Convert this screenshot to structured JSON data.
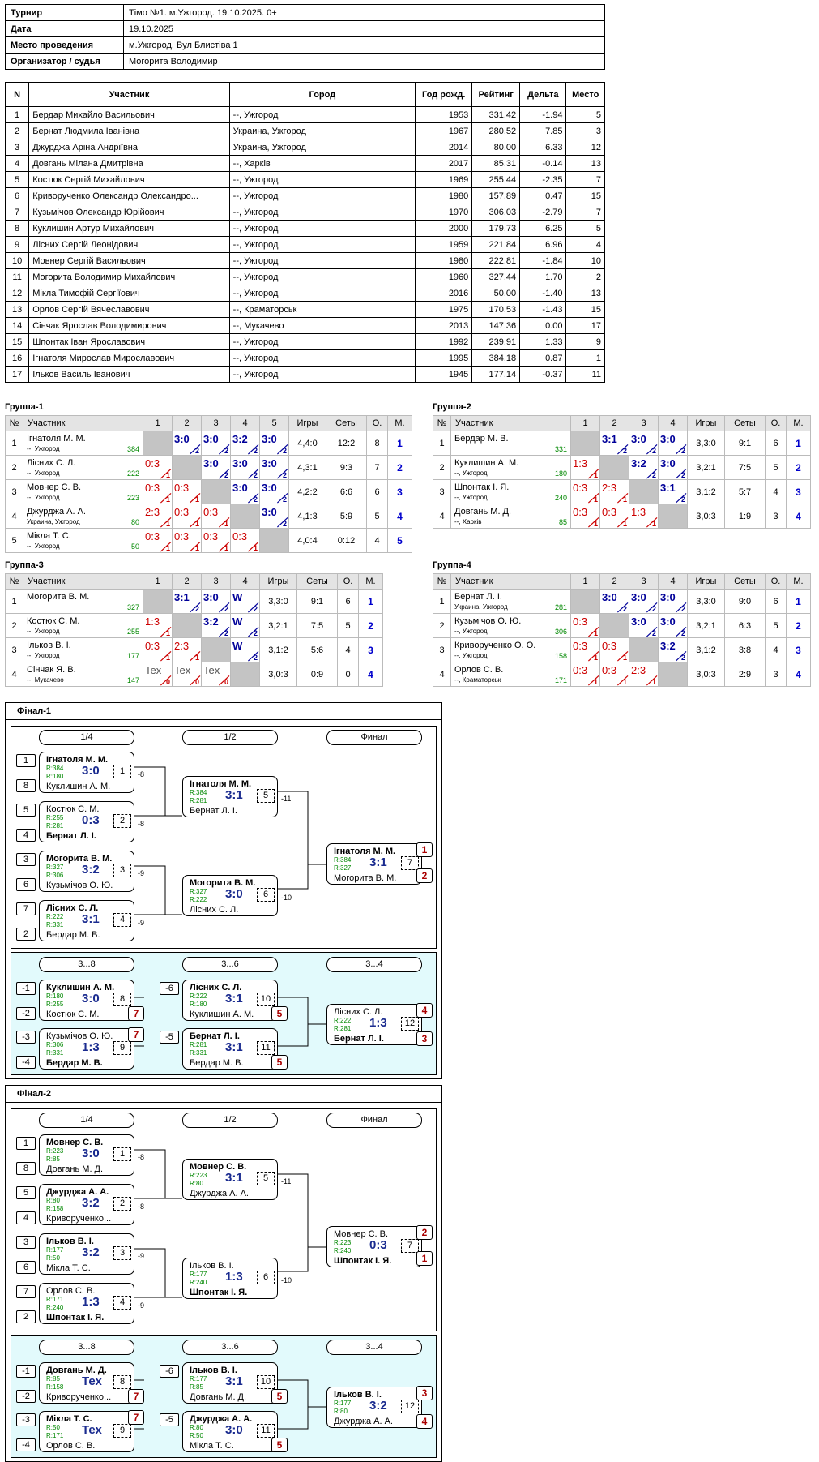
{
  "info": [
    {
      "k": "Турнир",
      "v": "Тімо №1. м.Ужгород. 19.10.2025. 0+"
    },
    {
      "k": "Дата",
      "v": "19.10.2025"
    },
    {
      "k": "Место проведения",
      "v": "м.Ужгород, Вул Блистіва 1"
    },
    {
      "k": "Организатор / судья",
      "v": "Могорита Володимир"
    }
  ],
  "players_header": [
    "N",
    "Участник",
    "Город",
    "Год рожд.",
    "Рейтинг",
    "Дельта",
    "Место"
  ],
  "players": [
    [
      "1",
      "Бердар Михайло Васильович",
      "--, Ужгород",
      "1953",
      "331.42",
      "-1.94",
      "5"
    ],
    [
      "2",
      "Бернат Людмила Іванівна",
      "Украина, Ужгород",
      "1967",
      "280.52",
      "7.85",
      "3"
    ],
    [
      "3",
      "Джурджа Аріна Андріївна",
      "Украина, Ужгород",
      "2014",
      "80.00",
      "6.33",
      "12"
    ],
    [
      "4",
      "Довгань Мілана Дмитрівна",
      "--, Харків",
      "2017",
      "85.31",
      "-0.14",
      "13"
    ],
    [
      "5",
      "Костюк Сергій Михайлович",
      "--, Ужгород",
      "1969",
      "255.44",
      "-2.35",
      "7"
    ],
    [
      "6",
      "Криворученко Олександр Олександро...",
      "--, Ужгород",
      "1980",
      "157.89",
      "0.47",
      "15"
    ],
    [
      "7",
      "Кузьмічов Олександр Юрійович",
      "--, Ужгород",
      "1970",
      "306.03",
      "-2.79",
      "7"
    ],
    [
      "8",
      "Куклишин Артур Михайлович",
      "--, Ужгород",
      "2000",
      "179.73",
      "6.25",
      "5"
    ],
    [
      "9",
      "Лісних Сергій Леонідович",
      "--, Ужгород",
      "1959",
      "221.84",
      "6.96",
      "4"
    ],
    [
      "10",
      "Мовнер Сергій Васильович",
      "--, Ужгород",
      "1980",
      "222.81",
      "-1.84",
      "10"
    ],
    [
      "11",
      "Могорита Володимир Михайлович",
      "--, Ужгород",
      "1960",
      "327.44",
      "1.70",
      "2"
    ],
    [
      "12",
      "Мікла Тимофій Сергіїович",
      "--, Ужгород",
      "2016",
      "50.00",
      "-1.40",
      "13"
    ],
    [
      "13",
      "Орлов Сергій Вячеславович",
      "--, Краматорськ",
      "1975",
      "170.53",
      "-1.43",
      "15"
    ],
    [
      "14",
      "Сінчак Ярослав Володимирович",
      "--, Мукачево",
      "2013",
      "147.36",
      "0.00",
      "17"
    ],
    [
      "15",
      "Шпонтак Іван Ярославович",
      "--, Ужгород",
      "1992",
      "239.91",
      "1.33",
      "9"
    ],
    [
      "16",
      "Ігнатоля Мирослав Мирославович",
      "--, Ужгород",
      "1995",
      "384.18",
      "0.87",
      "1"
    ],
    [
      "17",
      "Ільков Василь Іванович",
      "--, Ужгород",
      "1945",
      "177.14",
      "-0.37",
      "11"
    ]
  ],
  "group_header": {
    "n": "№",
    "name": "Участник",
    "games": "Игры",
    "sets": "Сеты",
    "pts": "О.",
    "place": "М."
  },
  "groups": [
    {
      "title": "Группа-1",
      "rows": [
        {
          "n": "1",
          "name": "Ігнатоля М. М.",
          "city": "--, Ужгород",
          "r": "384",
          "res": [
            "X",
            "W3:0|2",
            "W3:0|2",
            "W3:2|2",
            "W3:0|2"
          ],
          "g": "4,4:0",
          "s": "12:2",
          "o": "8",
          "m": "1"
        },
        {
          "n": "2",
          "name": "Лісних С. Л.",
          "city": "--, Ужгород",
          "r": "222",
          "res": [
            "L0:3|1",
            "X",
            "W3:0|2",
            "W3:0|2",
            "W3:0|2"
          ],
          "g": "4,3:1",
          "s": "9:3",
          "o": "7",
          "m": "2"
        },
        {
          "n": "3",
          "name": "Мовнер С. В.",
          "city": "--, Ужгород",
          "r": "223",
          "res": [
            "L0:3|1",
            "L0:3|1",
            "X",
            "W3:0|2",
            "W3:0|2"
          ],
          "g": "4,2:2",
          "s": "6:6",
          "o": "6",
          "m": "3"
        },
        {
          "n": "4",
          "name": "Джурджа А. А.",
          "city": "Украина, Ужгород",
          "r": "80",
          "res": [
            "L2:3|1",
            "L0:3|1",
            "L0:3|1",
            "X",
            "W3:0|2"
          ],
          "g": "4,1:3",
          "s": "5:9",
          "o": "5",
          "m": "4"
        },
        {
          "n": "5",
          "name": "Мікла Т. С.",
          "city": "--, Ужгород",
          "r": "50",
          "res": [
            "L0:3|1",
            "L0:3|1",
            "L0:3|1",
            "L0:3|1",
            "X"
          ],
          "g": "4,0:4",
          "s": "0:12",
          "o": "4",
          "m": "5"
        }
      ]
    },
    {
      "title": "Группа-2",
      "rows": [
        {
          "n": "1",
          "name": "Бердар М. В.",
          "city": "",
          "r": "331",
          "res": [
            "X",
            "W3:1|2",
            "W3:0|2",
            "W3:0|2"
          ],
          "g": "3,3:0",
          "s": "9:1",
          "o": "6",
          "m": "1"
        },
        {
          "n": "2",
          "name": "Куклишин А. М.",
          "city": "--, Ужгород",
          "r": "180",
          "res": [
            "L1:3|1",
            "X",
            "W3:2|2",
            "W3:0|2"
          ],
          "g": "3,2:1",
          "s": "7:5",
          "o": "5",
          "m": "2"
        },
        {
          "n": "3",
          "name": "Шпонтак І. Я.",
          "city": "--, Ужгород",
          "r": "240",
          "res": [
            "L0:3|1",
            "L2:3|1",
            "X",
            "W3:1|2"
          ],
          "g": "3,1:2",
          "s": "5:7",
          "o": "4",
          "m": "3"
        },
        {
          "n": "4",
          "name": "Довгань М. Д.",
          "city": "--, Харків",
          "r": "85",
          "res": [
            "L0:3|1",
            "L0:3|1",
            "L1:3|1",
            "X"
          ],
          "g": "3,0:3",
          "s": "1:9",
          "o": "3",
          "m": "4"
        }
      ]
    },
    {
      "title": "Группа-3",
      "rows": [
        {
          "n": "1",
          "name": "Могорита В. М.",
          "city": "",
          "r": "327",
          "res": [
            "X",
            "W3:1|2",
            "W3:0|2",
            "WW|2"
          ],
          "g": "3,3:0",
          "s": "9:1",
          "o": "6",
          "m": "1"
        },
        {
          "n": "2",
          "name": "Костюк С. М.",
          "city": "--, Ужгород",
          "r": "255",
          "res": [
            "L1:3|1",
            "X",
            "W3:2|2",
            "WW|2"
          ],
          "g": "3,2:1",
          "s": "7:5",
          "o": "5",
          "m": "2"
        },
        {
          "n": "3",
          "name": "Ільков В. І.",
          "city": "--, Ужгород",
          "r": "177",
          "res": [
            "L0:3|1",
            "L2:3|1",
            "X",
            "WW|2"
          ],
          "g": "3,1:2",
          "s": "5:6",
          "o": "4",
          "m": "3"
        },
        {
          "n": "4",
          "name": "Сінчак Я. В.",
          "city": "--, Мукачево",
          "r": "147",
          "res": [
            "TTex|0",
            "TTex|0",
            "TTex|0",
            "X"
          ],
          "g": "3,0:3",
          "s": "0:9",
          "o": "0",
          "m": "4"
        }
      ]
    },
    {
      "title": "Группа-4",
      "rows": [
        {
          "n": "1",
          "name": "Бернат Л. І.",
          "city": "Украина, Ужгород",
          "r": "281",
          "res": [
            "X",
            "W3:0|2",
            "W3:0|2",
            "W3:0|2"
          ],
          "g": "3,3:0",
          "s": "9:0",
          "o": "6",
          "m": "1"
        },
        {
          "n": "2",
          "name": "Кузьмічов О. Ю.",
          "city": "--, Ужгород",
          "r": "306",
          "res": [
            "L0:3|1",
            "X",
            "W3:0|2",
            "W3:0|2"
          ],
          "g": "3,2:1",
          "s": "6:3",
          "o": "5",
          "m": "2"
        },
        {
          "n": "3",
          "name": "Криворученко О. О.",
          "city": "--, Ужгород",
          "r": "158",
          "res": [
            "L0:3|1",
            "L0:3|1",
            "X",
            "W3:2|2"
          ],
          "g": "3,1:2",
          "s": "3:8",
          "o": "4",
          "m": "3"
        },
        {
          "n": "4",
          "name": "Орлов С. В.",
          "city": "--, Краматорськ",
          "r": "171",
          "res": [
            "L0:3|1",
            "L0:3|1",
            "L2:3|1",
            "X"
          ],
          "g": "3,0:3",
          "s": "2:9",
          "o": "3",
          "m": "4"
        }
      ]
    }
  ],
  "finals": [
    {
      "title": "Фінал-1",
      "rounds1": [
        "1/4",
        "1/2",
        "Финал"
      ],
      "rounds2": [
        "3...8",
        "3...6",
        "3...4"
      ],
      "seeds1": [
        "1",
        "8",
        "5",
        "4",
        "3",
        "6",
        "7",
        "2"
      ],
      "seeds2": [
        "-1",
        "-2",
        "-3",
        "-4",
        "-6",
        "-5"
      ],
      "m1": [
        {
          "a": "Ігнатоля М. М.",
          "ab": 1,
          "ra": "R:384",
          "b": "Куклишин А. М.",
          "bb": 0,
          "rb": "R:180",
          "s": "3:0",
          "n": "1",
          "lab": "-8"
        },
        {
          "a": "Костюк С. М.",
          "ab": 0,
          "ra": "R:255",
          "b": "Бернат Л. І.",
          "bb": 1,
          "rb": "R:281",
          "s": "0:3",
          "n": "2",
          "lab": "-8"
        },
        {
          "a": "Могорита В. М.",
          "ab": 1,
          "ra": "R:327",
          "b": "Кузьмічов О. Ю.",
          "bb": 0,
          "rb": "R:306",
          "s": "3:2",
          "n": "3",
          "lab": "-9"
        },
        {
          "a": "Лісних С. Л.",
          "ab": 1,
          "ra": "R:222",
          "b": "Бердар М. В.",
          "bb": 0,
          "rb": "R:331",
          "s": "3:1",
          "n": "4",
          "lab": "-9"
        },
        {
          "a": "Ігнатоля М. М.",
          "ab": 1,
          "ra": "R:384",
          "b": "Бернат Л. І.",
          "bb": 0,
          "rb": "R:281",
          "s": "3:1",
          "n": "5",
          "lab": "-11"
        },
        {
          "a": "Могорита В. М.",
          "ab": 1,
          "ra": "R:327",
          "b": "Лісних С. Л.",
          "bb": 0,
          "rb": "R:222",
          "s": "3:0",
          "n": "6",
          "lab": "-10"
        },
        {
          "a": "Ігнатоля М. М.",
          "ab": 1,
          "ra": "R:384",
          "b": "Могорита В. М.",
          "bb": 0,
          "rb": "R:327",
          "s": "3:1",
          "n": "7",
          "lab": ""
        }
      ],
      "m2": [
        {
          "a": "Куклишин А. М.",
          "ab": 1,
          "ra": "R:180",
          "b": "Костюк С. М.",
          "bb": 0,
          "rb": "R:255",
          "s": "3:0",
          "n": "8",
          "lab": ""
        },
        {
          "a": "Кузьмічов О. Ю.",
          "ab": 0,
          "ra": "R:306",
          "b": "Бердар М. В.",
          "bb": 1,
          "rb": "R:331",
          "s": "1:3",
          "n": "9",
          "lab": ""
        },
        {
          "a": "Лісних С. Л.",
          "ab": 1,
          "ra": "R:222",
          "b": "Куклишин А. М.",
          "bb": 0,
          "rb": "R:180",
          "s": "3:1",
          "n": "10",
          "lab": ""
        },
        {
          "a": "Бернат Л. І.",
          "ab": 1,
          "ra": "R:281",
          "b": "Бердар М. В.",
          "bb": 0,
          "rb": "R:331",
          "s": "3:1",
          "n": "11",
          "lab": ""
        },
        {
          "a": "Лісних С. Л.",
          "ab": 0,
          "ra": "R:222",
          "b": "Бернат Л. І.",
          "bb": 1,
          "rb": "R:281",
          "s": "1:3",
          "n": "12",
          "lab": ""
        }
      ],
      "places1": [
        "1",
        "2"
      ],
      "places2": [
        "7",
        "7",
        "5",
        "5",
        "4",
        "3"
      ]
    },
    {
      "title": "Фінал-2",
      "rounds1": [
        "1/4",
        "1/2",
        "Финал"
      ],
      "rounds2": [
        "3...8",
        "3...6",
        "3...4"
      ],
      "seeds1": [
        "1",
        "8",
        "5",
        "4",
        "3",
        "6",
        "7",
        "2"
      ],
      "seeds2": [
        "-1",
        "-2",
        "-3",
        "-4",
        "-6",
        "-5"
      ],
      "m1": [
        {
          "a": "Мовнер С. В.",
          "ab": 1,
          "ra": "R:223",
          "b": "Довгань М. Д.",
          "bb": 0,
          "rb": "R:85",
          "s": "3:0",
          "n": "1",
          "lab": "-8"
        },
        {
          "a": "Джурджа А. А.",
          "ab": 1,
          "ra": "R:80",
          "b": "Криворученко...",
          "bb": 0,
          "rb": "R:158",
          "s": "3:2",
          "n": "2",
          "lab": "-8"
        },
        {
          "a": "Ільков В. І.",
          "ab": 1,
          "ra": "R:177",
          "b": "Мікла Т. С.",
          "bb": 0,
          "rb": "R:50",
          "s": "3:2",
          "n": "3",
          "lab": "-9"
        },
        {
          "a": "Орлов С. В.",
          "ab": 0,
          "ra": "R:171",
          "b": "Шпонтак І. Я.",
          "bb": 1,
          "rb": "R:240",
          "s": "1:3",
          "n": "4",
          "lab": "-9"
        },
        {
          "a": "Мовнер С. В.",
          "ab": 1,
          "ra": "R:223",
          "b": "Джурджа А. А.",
          "bb": 0,
          "rb": "R:80",
          "s": "3:1",
          "n": "5",
          "lab": "-11"
        },
        {
          "a": "Ільков В. І.",
          "ab": 0,
          "ra": "R:177",
          "b": "Шпонтак І. Я.",
          "bb": 1,
          "rb": "R:240",
          "s": "1:3",
          "n": "6",
          "lab": "-10"
        },
        {
          "a": "Мовнер С. В.",
          "ab": 0,
          "ra": "R:223",
          "b": "Шпонтак І. Я.",
          "bb": 1,
          "rb": "R:240",
          "s": "0:3",
          "n": "7",
          "lab": ""
        }
      ],
      "m2": [
        {
          "a": "Довгань М. Д.",
          "ab": 1,
          "ra": "R:85",
          "b": "Криворученко...",
          "bb": 0,
          "rb": "R:158",
          "s": "Тех",
          "n": "8",
          "lab": ""
        },
        {
          "a": "Мікла Т. С.",
          "ab": 1,
          "ra": "R:50",
          "b": "Орлов С. В.",
          "bb": 0,
          "rb": "R:171",
          "s": "Тех",
          "n": "9",
          "lab": ""
        },
        {
          "a": "Ільков В. І.",
          "ab": 1,
          "ra": "R:177",
          "b": "Довгань М. Д.",
          "bb": 0,
          "rb": "R:85",
          "s": "3:1",
          "n": "10",
          "lab": ""
        },
        {
          "a": "Джурджа А. А.",
          "ab": 1,
          "ra": "R:80",
          "b": "Мікла Т. С.",
          "bb": 0,
          "rb": "R:50",
          "s": "3:0",
          "n": "11",
          "lab": ""
        },
        {
          "a": "Ільков В. І.",
          "ab": 1,
          "ra": "R:177",
          "b": "Джурджа А. А.",
          "bb": 0,
          "rb": "R:80",
          "s": "3:2",
          "n": "12",
          "lab": ""
        }
      ],
      "places1": [
        "2",
        "1"
      ],
      "places2": [
        "7",
        "7",
        "5",
        "5",
        "3",
        "4"
      ]
    }
  ]
}
